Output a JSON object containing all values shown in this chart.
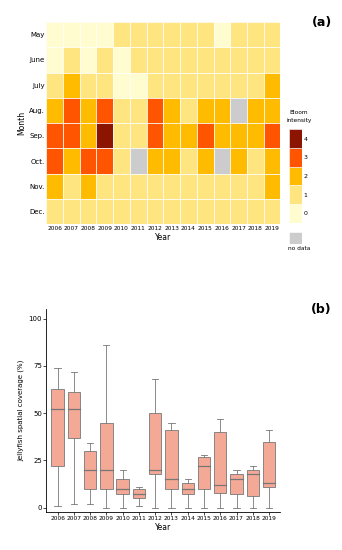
{
  "years": [
    2006,
    2007,
    2008,
    2009,
    2010,
    2011,
    2012,
    2013,
    2014,
    2015,
    2016,
    2017,
    2018,
    2019
  ],
  "months": [
    "May",
    "June",
    "July",
    "Aug.",
    "Sep.",
    "Oct.",
    "Nov.",
    "Dec."
  ],
  "heatmap": [
    [
      0,
      0,
      0,
      0,
      1,
      1,
      1,
      1,
      1,
      1,
      0,
      1,
      1,
      1
    ],
    [
      0,
      1,
      0,
      1,
      0,
      1,
      1,
      1,
      1,
      1,
      1,
      1,
      1,
      1
    ],
    [
      1,
      2,
      1,
      1,
      0,
      0,
      1,
      1,
      1,
      1,
      1,
      1,
      1,
      2
    ],
    [
      2,
      3,
      2,
      3,
      1,
      1,
      3,
      2,
      1,
      2,
      2,
      -1,
      2,
      2
    ],
    [
      3,
      3,
      2,
      4,
      1,
      1,
      3,
      2,
      2,
      3,
      2,
      2,
      2,
      3
    ],
    [
      3,
      2,
      3,
      3,
      1,
      -1,
      2,
      2,
      1,
      2,
      -1,
      2,
      1,
      2
    ],
    [
      2,
      1,
      2,
      1,
      1,
      1,
      1,
      1,
      1,
      1,
      1,
      1,
      1,
      2
    ],
    [
      1,
      1,
      1,
      1,
      1,
      1,
      1,
      1,
      1,
      1,
      1,
      1,
      1,
      1
    ]
  ],
  "box_data": {
    "2006": {
      "q1": 22,
      "median": 52,
      "q3": 63,
      "whisker_low": 1,
      "whisker_high": 74
    },
    "2007": {
      "q1": 37,
      "median": 52,
      "q3": 61,
      "whisker_low": 2,
      "whisker_high": 72
    },
    "2008": {
      "q1": 10,
      "median": 20,
      "q3": 30,
      "whisker_low": 2,
      "whisker_high": 34
    },
    "2009": {
      "q1": 10,
      "median": 20,
      "q3": 45,
      "whisker_low": 0,
      "whisker_high": 86
    },
    "2010": {
      "q1": 7,
      "median": 10,
      "q3": 15,
      "whisker_low": 0,
      "whisker_high": 20
    },
    "2011": {
      "q1": 5,
      "median": 7,
      "q3": 10,
      "whisker_low": 1,
      "whisker_high": 11
    },
    "2012": {
      "q1": 18,
      "median": 20,
      "q3": 50,
      "whisker_low": 0,
      "whisker_high": 68
    },
    "2013": {
      "q1": 10,
      "median": 15,
      "q3": 41,
      "whisker_low": 0,
      "whisker_high": 45
    },
    "2014": {
      "q1": 7,
      "median": 10,
      "q3": 13,
      "whisker_low": 0,
      "whisker_high": 15
    },
    "2015": {
      "q1": 10,
      "median": 22,
      "q3": 27,
      "whisker_low": 0,
      "whisker_high": 28
    },
    "2016": {
      "q1": 8,
      "median": 12,
      "q3": 40,
      "whisker_low": 0,
      "whisker_high": 47
    },
    "2017": {
      "q1": 7,
      "median": 15,
      "q3": 18,
      "whisker_low": 0,
      "whisker_high": 20
    },
    "2018": {
      "q1": 6,
      "median": 18,
      "q3": 20,
      "whisker_low": 0,
      "whisker_high": 22
    },
    "2019": {
      "q1": 11,
      "median": 13,
      "q3": 35,
      "whisker_low": 0,
      "whisker_high": 41
    }
  },
  "colormap_colors": [
    "#FFFDD0",
    "#FFE580",
    "#FFBB00",
    "#FF5500",
    "#8B1500"
  ],
  "nodata_color": "#CCCCCC",
  "box_color": "#F4A896",
  "box_edge_color": "#777777",
  "background_color": "#ffffff",
  "panel_bg": "#FFFFF5",
  "heatmap_bg": "#FFF8CC"
}
